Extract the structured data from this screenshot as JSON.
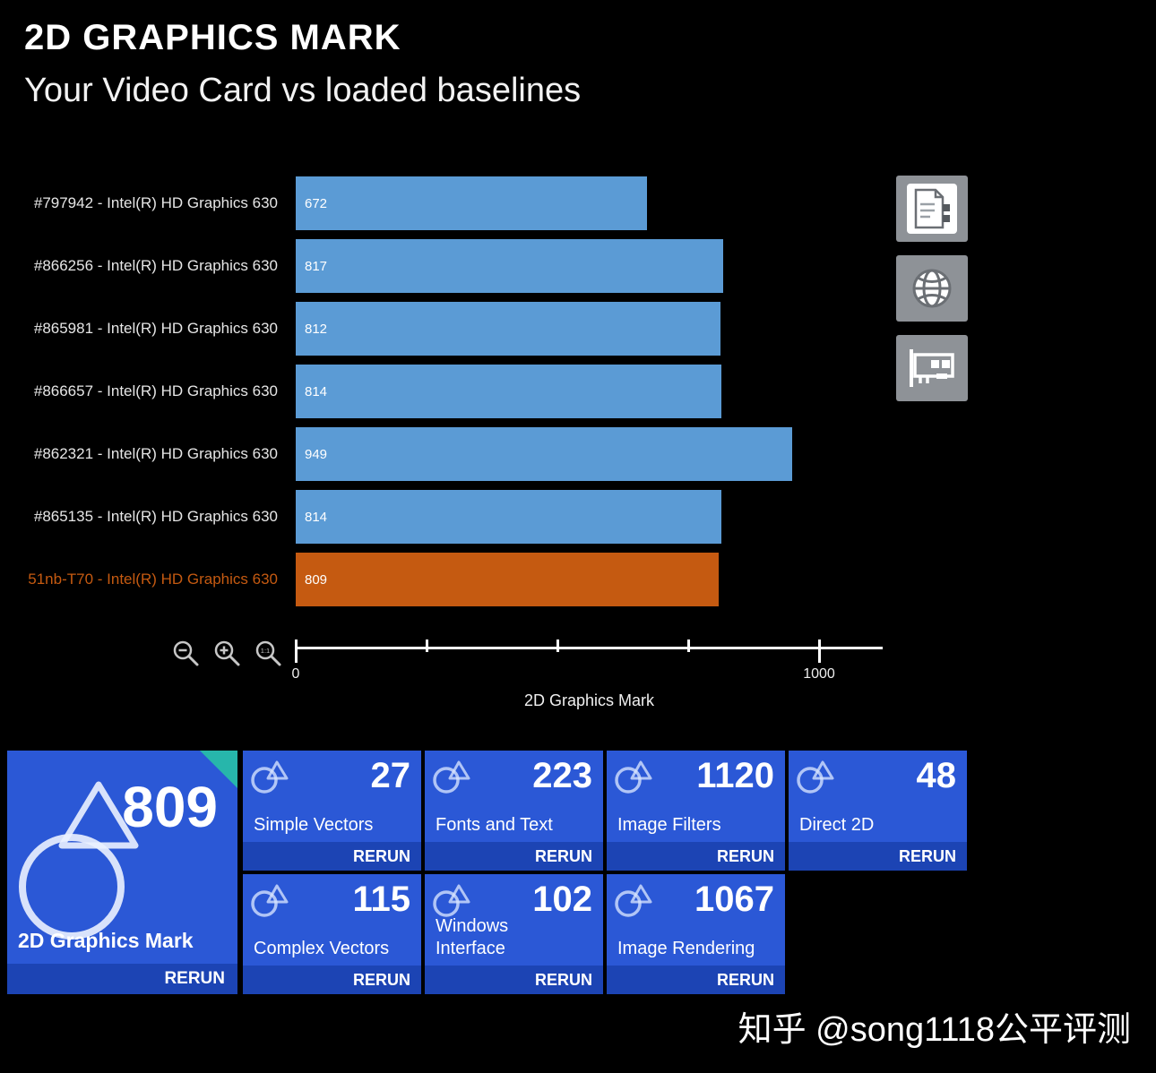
{
  "header": {
    "title": "2D GRAPHICS MARK",
    "subtitle": "Your Video Card vs loaded baselines"
  },
  "chart_data": {
    "type": "bar",
    "orientation": "horizontal",
    "title": "2D GRAPHICS MARK - Your Video Card vs loaded baselines",
    "xlabel": "2D Graphics Mark",
    "xlim": [
      0,
      1120
    ],
    "grid": false,
    "bars": [
      {
        "label": "#797942 - Intel(R) HD Graphics 630",
        "value": 672,
        "highlight": false
      },
      {
        "label": "#866256 - Intel(R) HD Graphics 630",
        "value": 817,
        "highlight": false
      },
      {
        "label": "#865981 - Intel(R) HD Graphics 630",
        "value": 812,
        "highlight": false
      },
      {
        "label": "#866657 - Intel(R) HD Graphics 630",
        "value": 814,
        "highlight": false
      },
      {
        "label": "#862321 - Intel(R) HD Graphics 630",
        "value": 949,
        "highlight": false
      },
      {
        "label": "#865135 - Intel(R) HD Graphics 630",
        "value": 814,
        "highlight": false
      },
      {
        "label": "51nb-T70 - Intel(R) HD Graphics 630",
        "value": 809,
        "highlight": true
      }
    ],
    "ticks": [
      {
        "value": 0,
        "label": "0"
      },
      {
        "value": 250,
        "label": ""
      },
      {
        "value": 500,
        "label": ""
      },
      {
        "value": 750,
        "label": ""
      },
      {
        "value": 1000,
        "label": "1000"
      }
    ]
  },
  "toolbar": {
    "icons": [
      "zoom-out-icon",
      "zoom-in-icon",
      "zoom-actual-size-icon"
    ],
    "zoom_actual_label": "1:1"
  },
  "side_buttons": {
    "icons": [
      "report-icon",
      "web-icon",
      "gpu-icon"
    ]
  },
  "summary": {
    "main_tile": {
      "value": "809",
      "label": "2D Graphics Mark",
      "rerun_label": "RERUN"
    },
    "tiles": [
      {
        "value": "27",
        "label": "Simple Vectors",
        "rerun_label": "RERUN"
      },
      {
        "value": "223",
        "label": "Fonts and Text",
        "rerun_label": "RERUN"
      },
      {
        "value": "1120",
        "label": "Image Filters",
        "rerun_label": "RERUN"
      },
      {
        "value": "48",
        "label": "Direct 2D",
        "rerun_label": "RERUN"
      },
      {
        "value": "115",
        "label": "Complex Vectors",
        "rerun_label": "RERUN"
      },
      {
        "value": "102",
        "label": "Windows Interface",
        "rerun_label": "RERUN"
      },
      {
        "value": "1067",
        "label": "Image Rendering",
        "rerun_label": "RERUN"
      }
    ]
  },
  "watermark": "知乎 @song1118公平评测",
  "colors": {
    "bar_blue": "#5b9bd5",
    "bar_orange": "#c55a11",
    "tile_blue": "#2b58d6",
    "strip_blue": "#1c44b4",
    "corner_teal": "#27b6ab"
  }
}
